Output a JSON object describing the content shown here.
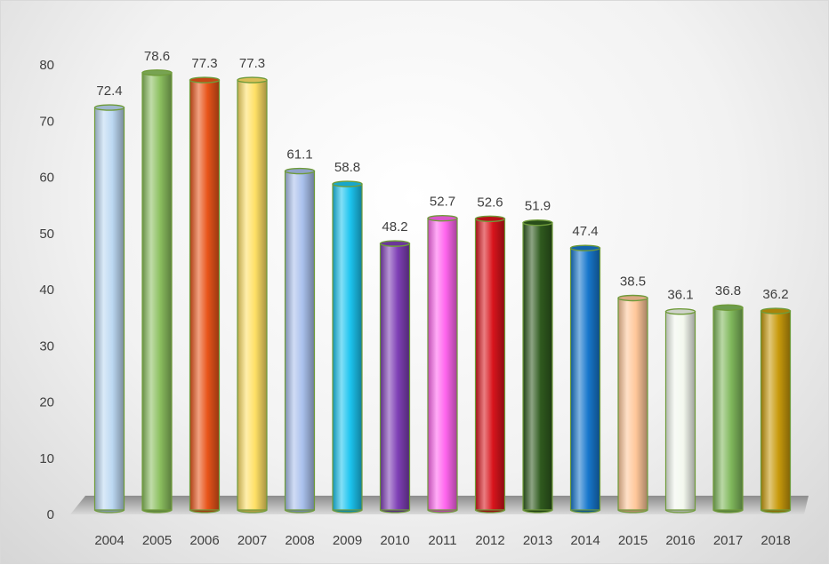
{
  "chart_data": {
    "type": "bar",
    "title": "",
    "xlabel": "",
    "ylabel": "",
    "ylim": [
      0,
      80
    ],
    "yticks": [
      0,
      10,
      20,
      30,
      40,
      50,
      60,
      70,
      80
    ],
    "grid": false,
    "legend": "none",
    "categories": [
      "2004",
      "2005",
      "2006",
      "2007",
      "2008",
      "2009",
      "2010",
      "2011",
      "2012",
      "2013",
      "2014",
      "2015",
      "2016",
      "2017",
      "2018"
    ],
    "values": [
      72.4,
      78.6,
      77.3,
      77.3,
      61.1,
      58.8,
      48.2,
      52.7,
      52.6,
      51.9,
      47.4,
      38.5,
      36.1,
      36.8,
      36.2
    ],
    "data_labels": [
      "72.4",
      "78.6",
      "77.3",
      "77.3",
      "61.1",
      "58.8",
      "48.2",
      "52.7",
      "52.6",
      "51.9",
      "47.4",
      "38.5",
      "36.1",
      "36.8",
      "36.2"
    ],
    "bar_colors": [
      "#bcd8f2",
      "#8cc060",
      "#e8541a",
      "#ffe066",
      "#a9c0ec",
      "#1cc4ef",
      "#7e3fb5",
      "#ff66ee",
      "#d8141c",
      "#2f5a1e",
      "#1777cc",
      "#ffc79a",
      "#f3f8ee",
      "#80b85c",
      "#c89a0c"
    ],
    "edge_color": "#6f9b3a"
  }
}
